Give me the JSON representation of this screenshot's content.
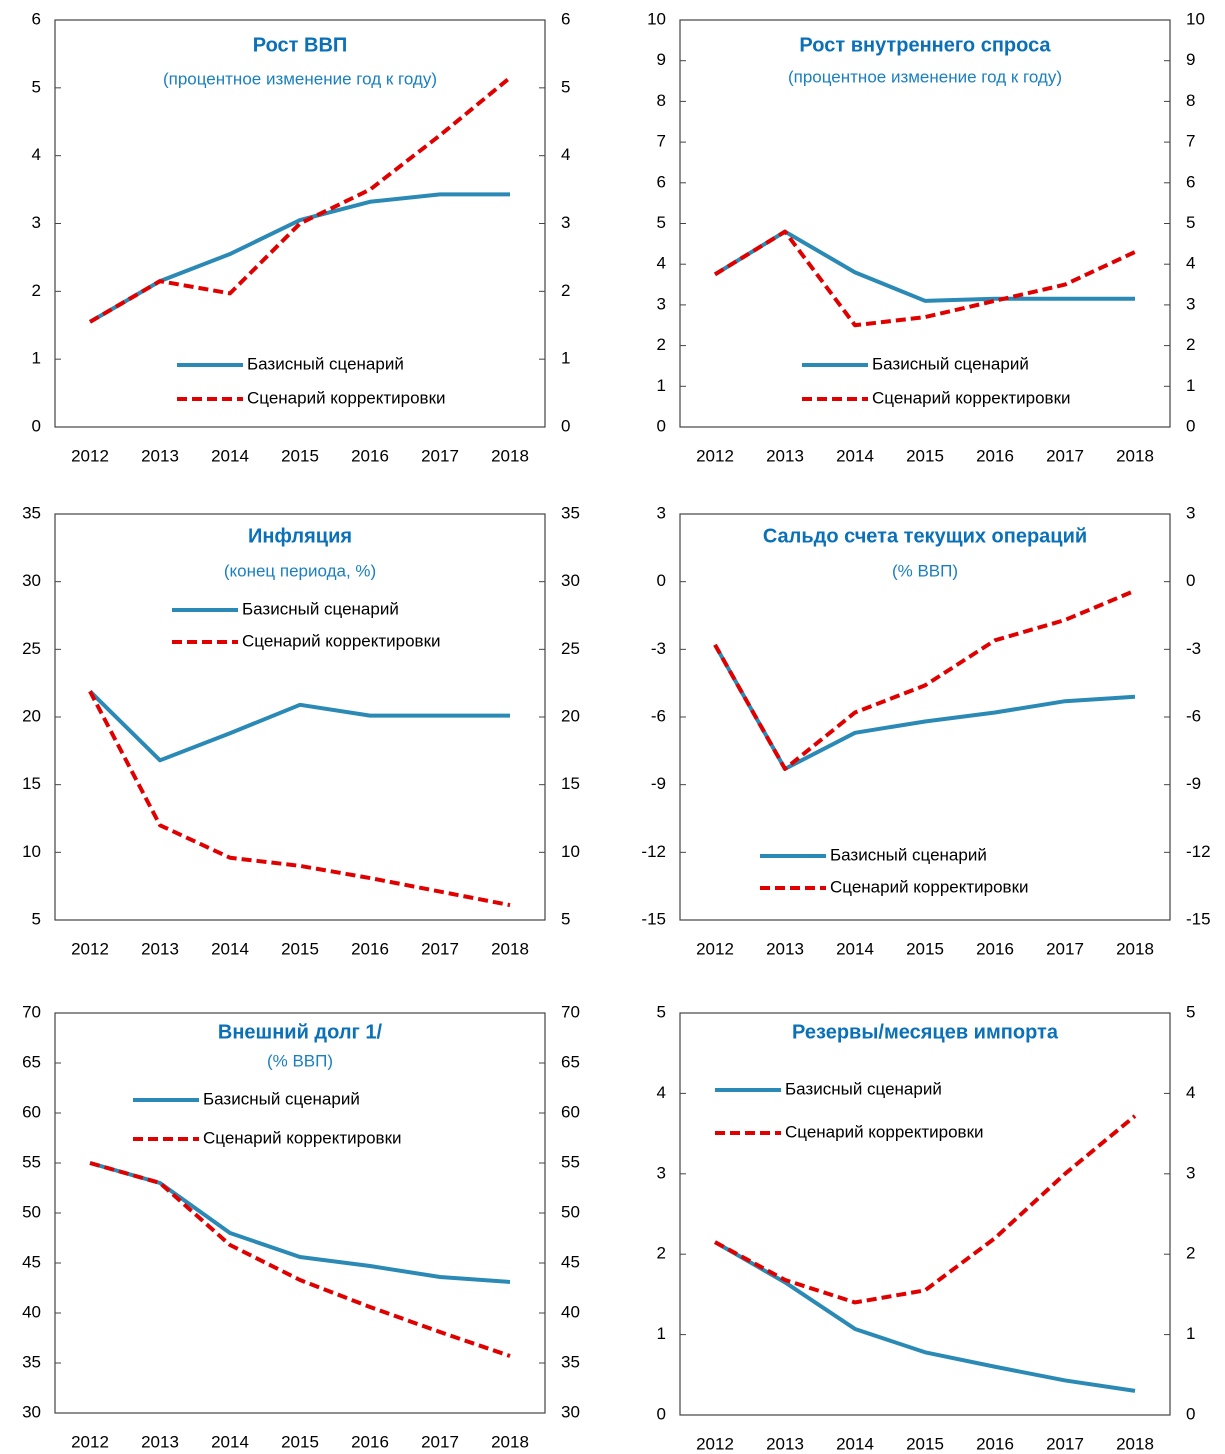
{
  "chart_data": [
    {
      "type": "line",
      "title": "Рост ВВП",
      "subtitle": "(процентное изменение  год к году)",
      "categories": [
        "2012",
        "2013",
        "2014",
        "2015",
        "2016",
        "2017",
        "2018"
      ],
      "series": [
        {
          "name": "Базисный сценарий",
          "color": "#2a8ab5",
          "style": "solid",
          "values": [
            1.55,
            2.15,
            2.55,
            3.05,
            3.32,
            3.43,
            3.43
          ]
        },
        {
          "name": "Сценарий корректировки",
          "color": "#e00000",
          "style": "dashed",
          "values": [
            1.55,
            2.15,
            1.97,
            3.0,
            3.5,
            4.3,
            5.15
          ]
        }
      ],
      "ylim": [
        0,
        6
      ],
      "yticks": [
        0,
        1,
        2,
        3,
        4,
        5,
        6
      ],
      "y2lim": [
        0,
        6
      ],
      "y2ticks": [
        0,
        1,
        2,
        3,
        4,
        5,
        6
      ],
      "legend": "lower right"
    },
    {
      "type": "line",
      "title": "Рост внутреннего  спроса",
      "subtitle": "(процентное изменение  год к году)",
      "categories": [
        "2012",
        "2013",
        "2014",
        "2015",
        "2016",
        "2017",
        "2018"
      ],
      "series": [
        {
          "name": "Базисный сценарий",
          "color": "#2a8ab5",
          "style": "solid",
          "values": [
            3.75,
            4.8,
            3.8,
            3.1,
            3.15,
            3.15,
            3.15
          ]
        },
        {
          "name": "Сценарий корректировки",
          "color": "#e00000",
          "style": "dashed",
          "values": [
            3.75,
            4.8,
            2.5,
            2.7,
            3.1,
            3.5,
            4.3
          ]
        }
      ],
      "ylim": [
        0,
        10
      ],
      "yticks": [
        0,
        1,
        2,
        3,
        4,
        5,
        6,
        7,
        8,
        9,
        10
      ],
      "y2lim": [
        0,
        10
      ],
      "y2ticks": [
        0,
        1,
        2,
        3,
        4,
        5,
        6,
        7,
        8,
        9,
        10
      ],
      "legend": "lower right"
    },
    {
      "type": "line",
      "title": "Инфляция",
      "subtitle": "(конец периода, %)",
      "categories": [
        "2012",
        "2013",
        "2014",
        "2015",
        "2016",
        "2017",
        "2018"
      ],
      "series": [
        {
          "name": "Базисный сценарий",
          "color": "#2a8ab5",
          "style": "solid",
          "values": [
            21.9,
            16.8,
            18.8,
            20.9,
            20.1,
            20.1,
            20.1
          ]
        },
        {
          "name": "Сценарий корректировки",
          "color": "#e00000",
          "style": "dashed",
          "values": [
            21.9,
            12.0,
            9.6,
            9.0,
            8.1,
            7.1,
            6.1
          ]
        }
      ],
      "ylim": [
        5,
        35
      ],
      "yticks": [
        5,
        10,
        15,
        20,
        25,
        30,
        35
      ],
      "y2lim": [
        5,
        35
      ],
      "y2ticks": [
        5,
        10,
        15,
        20,
        25,
        30,
        35
      ],
      "legend": "upper right"
    },
    {
      "type": "line",
      "title": "Сальдо счета текущих операций",
      "subtitle": "(% ВВП)",
      "categories": [
        "2012",
        "2013",
        "2014",
        "2015",
        "2016",
        "2017",
        "2018"
      ],
      "series": [
        {
          "name": "Базисный сценарий",
          "color": "#2a8ab5",
          "style": "solid",
          "values": [
            -2.8,
            -8.3,
            -6.7,
            -6.2,
            -5.8,
            -5.3,
            -5.1
          ]
        },
        {
          "name": "Сценарий корректировки",
          "color": "#e00000",
          "style": "dashed",
          "values": [
            -2.8,
            -8.3,
            -5.8,
            -4.6,
            -2.6,
            -1.7,
            -0.4
          ]
        }
      ],
      "ylim": [
        -15,
        3
      ],
      "yticks": [
        -15,
        -12,
        -9,
        -6,
        -3,
        0,
        3
      ],
      "y2lim": [
        -15,
        3
      ],
      "y2ticks": [
        -15,
        -12,
        -9,
        -6,
        -3,
        0,
        3
      ],
      "legend": "lower center"
    },
    {
      "type": "line",
      "title": "Внешний долг 1/",
      "subtitle": "(% ВВП)",
      "categories": [
        "2012",
        "2013",
        "2014",
        "2015",
        "2016",
        "2017",
        "2018"
      ],
      "series": [
        {
          "name": "Базисный сценарий",
          "color": "#2a8ab5",
          "style": "solid",
          "values": [
            55,
            53,
            48,
            45.6,
            44.7,
            43.6,
            43.1
          ]
        },
        {
          "name": "Сценарий корректировки",
          "color": "#e00000",
          "style": "dashed",
          "values": [
            55,
            53,
            46.8,
            43.3,
            40.6,
            38.1,
            35.7
          ]
        }
      ],
      "ylim": [
        30,
        70
      ],
      "yticks": [
        30,
        35,
        40,
        45,
        50,
        55,
        60,
        65,
        70
      ],
      "y2lim": [
        30,
        70
      ],
      "y2ticks": [
        30,
        35,
        40,
        45,
        50,
        55,
        60,
        65,
        70
      ],
      "legend": "upper center"
    },
    {
      "type": "line",
      "title": "Резервы/месяцев  импорта",
      "categories": [
        "2012",
        "2013",
        "2014",
        "2015",
        "2016",
        "2017",
        "2018"
      ],
      "series": [
        {
          "name": "Базисный сценарий",
          "color": "#2a8ab5",
          "style": "solid",
          "values": [
            2.15,
            1.65,
            1.07,
            0.78,
            0.6,
            0.43,
            0.3
          ]
        },
        {
          "name": "Сценарий корректировки",
          "color": "#e00000",
          "style": "dashed",
          "values": [
            2.15,
            1.68,
            1.4,
            1.55,
            2.2,
            3.0,
            3.72
          ]
        }
      ],
      "ylim": [
        0,
        5
      ],
      "yticks": [
        0,
        1,
        2,
        3,
        4,
        5
      ],
      "y2lim": [
        0,
        5
      ],
      "y2ticks": [
        0,
        1,
        2,
        3,
        4,
        5
      ],
      "legend": "upper left"
    }
  ]
}
